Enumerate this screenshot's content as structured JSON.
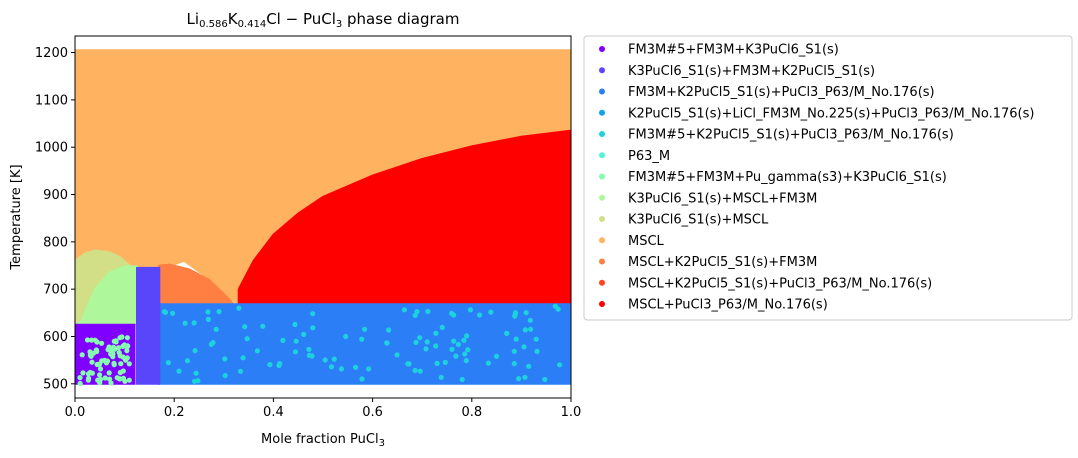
{
  "chart_data": {
    "type": "scatter",
    "title": {
      "prefix": "Li",
      "sub1": "0.586",
      "mid": "K",
      "sub2": "0.414",
      "suffix": "Cl − PuCl",
      "sub3": "3",
      "tail": " phase diagram"
    },
    "xlabel": {
      "text": "Mole fraction PuCl",
      "sub": "3"
    },
    "ylabel": "Temperature [K]",
    "xlim": [
      0,
      1
    ],
    "ylim": [
      470,
      1235
    ],
    "xticks": [
      "0.0",
      "0.2",
      "0.4",
      "0.6",
      "0.8",
      "1.0"
    ],
    "xtick_values": [
      0,
      0.2,
      0.4,
      0.6,
      0.8,
      1.0
    ],
    "yticks": [
      "500",
      "600",
      "700",
      "800",
      "900",
      "1000",
      "1100",
      "1200"
    ],
    "ytick_values": [
      500,
      600,
      700,
      800,
      900,
      1000,
      1100,
      1200
    ],
    "grid": false,
    "legend_position": "outside-right",
    "series": [
      {
        "name": "FM3M#5+FM3M+K3PuCl6_S1(s)",
        "color": "#8000ff",
        "regions": [
          {
            "type": "poly",
            "points": [
              [
                0.0,
                500
              ],
              [
                0.12,
                500
              ],
              [
                0.12,
                625
              ],
              [
                0.0,
                625
              ]
            ]
          }
        ]
      },
      {
        "name": "K3PuCl6_S1(s)+FM3M+K2PuCl5_S1(s)",
        "color": "#5a46fa",
        "regions": [
          {
            "type": "poly",
            "points": [
              [
                0.125,
                500
              ],
              [
                0.17,
                500
              ],
              [
                0.17,
                745
              ],
              [
                0.125,
                745
              ]
            ]
          }
        ]
      },
      {
        "name": "FM3M+K2PuCl5_S1(s)+PuCl3_P63/M_No.176(s)",
        "color": "#2c7ef7",
        "regions": [
          {
            "type": "poly",
            "points": [
              [
                0.17,
                500
              ],
              [
                1.0,
                500
              ],
              [
                1.0,
                668
              ],
              [
                0.17,
                668
              ]
            ]
          }
        ]
      },
      {
        "name": "K2PuCl5_S1(s)+LiCl_FM3M_No.225(s)+PuCl3_P63/M_No.176(s)",
        "color": "#10a2f0",
        "regions": []
      },
      {
        "name": "FM3M#5+K2PuCl5_S1(s)+PuCl3_P63/M_No.176(s)",
        "color": "#1cd2dd",
        "regions": [
          {
            "type": "dots",
            "x": [
              0.18,
              0.98
            ],
            "y": [
              505,
              665
            ],
            "n": 110
          }
        ]
      },
      {
        "name": "P63_M",
        "color": "#50f4d8",
        "regions": []
      },
      {
        "name": "FM3M#5+FM3M+Pu_gamma(s3)+K3PuCl6_S1(s)",
        "color": "#86fcb0",
        "regions": [
          {
            "type": "dots",
            "x": [
              0.01,
              0.11
            ],
            "y": [
              500,
              600
            ],
            "n": 75
          }
        ]
      },
      {
        "name": "K3PuCl6_S1(s)+MSCL+FM3M",
        "color": "#aef79a",
        "regions": [
          {
            "type": "poly",
            "points": [
              [
                0.0,
                625
              ],
              [
                0.012,
                630
              ],
              [
                0.04,
                700
              ],
              [
                0.07,
                735
              ],
              [
                0.1,
                748
              ],
              [
                0.125,
                748
              ],
              [
                0.125,
                625
              ]
            ]
          }
        ]
      },
      {
        "name": "K3PuCl6_S1(s)+MSCL",
        "color": "#d2df87",
        "regions": [
          {
            "type": "poly",
            "points": [
              [
                0.0,
                625
              ],
              [
                0.0,
                760
              ],
              [
                0.02,
                775
              ],
              [
                0.04,
                782
              ],
              [
                0.07,
                778
              ],
              [
                0.09,
                768
              ],
              [
                0.11,
                750
              ],
              [
                0.07,
                735
              ],
              [
                0.04,
                700
              ],
              [
                0.012,
                630
              ]
            ]
          }
        ]
      },
      {
        "name": "MSCL",
        "color": "#ffb360",
        "regions": [
          {
            "type": "poly",
            "points": [
              [
                0.0,
                760
              ],
              [
                0.0,
                1205
              ],
              [
                1.0,
                1205
              ],
              [
                1.0,
                668
              ],
              [
                0.33,
                668
              ],
              [
                0.3,
                690
              ],
              [
                0.26,
                730
              ],
              [
                0.22,
                760
              ],
              [
                0.18,
                745
              ],
              [
                0.11,
                750
              ],
              [
                0.09,
                768
              ],
              [
                0.07,
                778
              ],
              [
                0.04,
                782
              ],
              [
                0.02,
                775
              ]
            ]
          }
        ]
      },
      {
        "name": "MSCL+K2PuCl5_S1(s)+FM3M",
        "color": "#ff7e41",
        "regions": [
          {
            "type": "poly",
            "points": [
              [
                0.17,
                668
              ],
              [
                0.32,
                668
              ],
              [
                0.3,
                690
              ],
              [
                0.27,
                720
              ],
              [
                0.23,
                742
              ],
              [
                0.19,
                752
              ],
              [
                0.17,
                750
              ]
            ]
          }
        ]
      },
      {
        "name": "MSCL+K2PuCl5_S1(s)+PuCl3_P63/M_No.176(s)",
        "color": "#ff4421",
        "regions": []
      },
      {
        "name": "MSCL+PuCl3_P63/M_No.176(s)",
        "color": "#ff0000",
        "regions": [
          {
            "type": "poly",
            "points": [
              [
                0.33,
                668
              ],
              [
                1.0,
                668
              ],
              [
                1.0,
                1035
              ],
              [
                0.9,
                1022
              ],
              [
                0.8,
                1002
              ],
              [
                0.7,
                975
              ],
              [
                0.6,
                940
              ],
              [
                0.5,
                895
              ],
              [
                0.45,
                860
              ],
              [
                0.4,
                815
              ],
              [
                0.36,
                760
              ],
              [
                0.33,
                700
              ]
            ]
          }
        ]
      }
    ]
  }
}
